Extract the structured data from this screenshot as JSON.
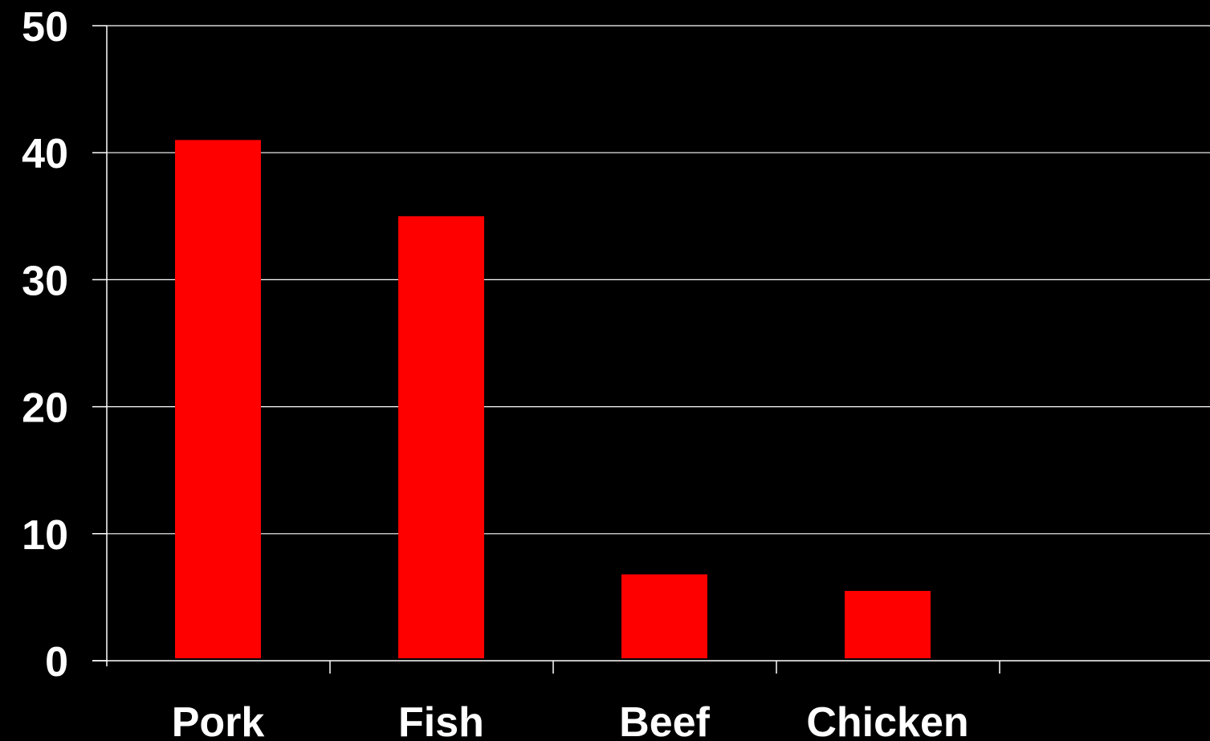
{
  "chart_data": {
    "type": "bar",
    "title": "",
    "xlabel": "",
    "ylabel": "",
    "categories": [
      "Pork",
      "Fish",
      "Beef",
      "Chicken"
    ],
    "values": [
      41,
      35,
      6.8,
      5.5
    ],
    "ylim": [
      0,
      50
    ],
    "yticks": [
      0,
      10,
      20,
      30,
      40,
      50
    ],
    "grid": true,
    "legend": "none",
    "colors": {
      "background": "#000000",
      "bar": "#ff0000",
      "axis": "#ffffff",
      "text": "#ffffff"
    }
  }
}
